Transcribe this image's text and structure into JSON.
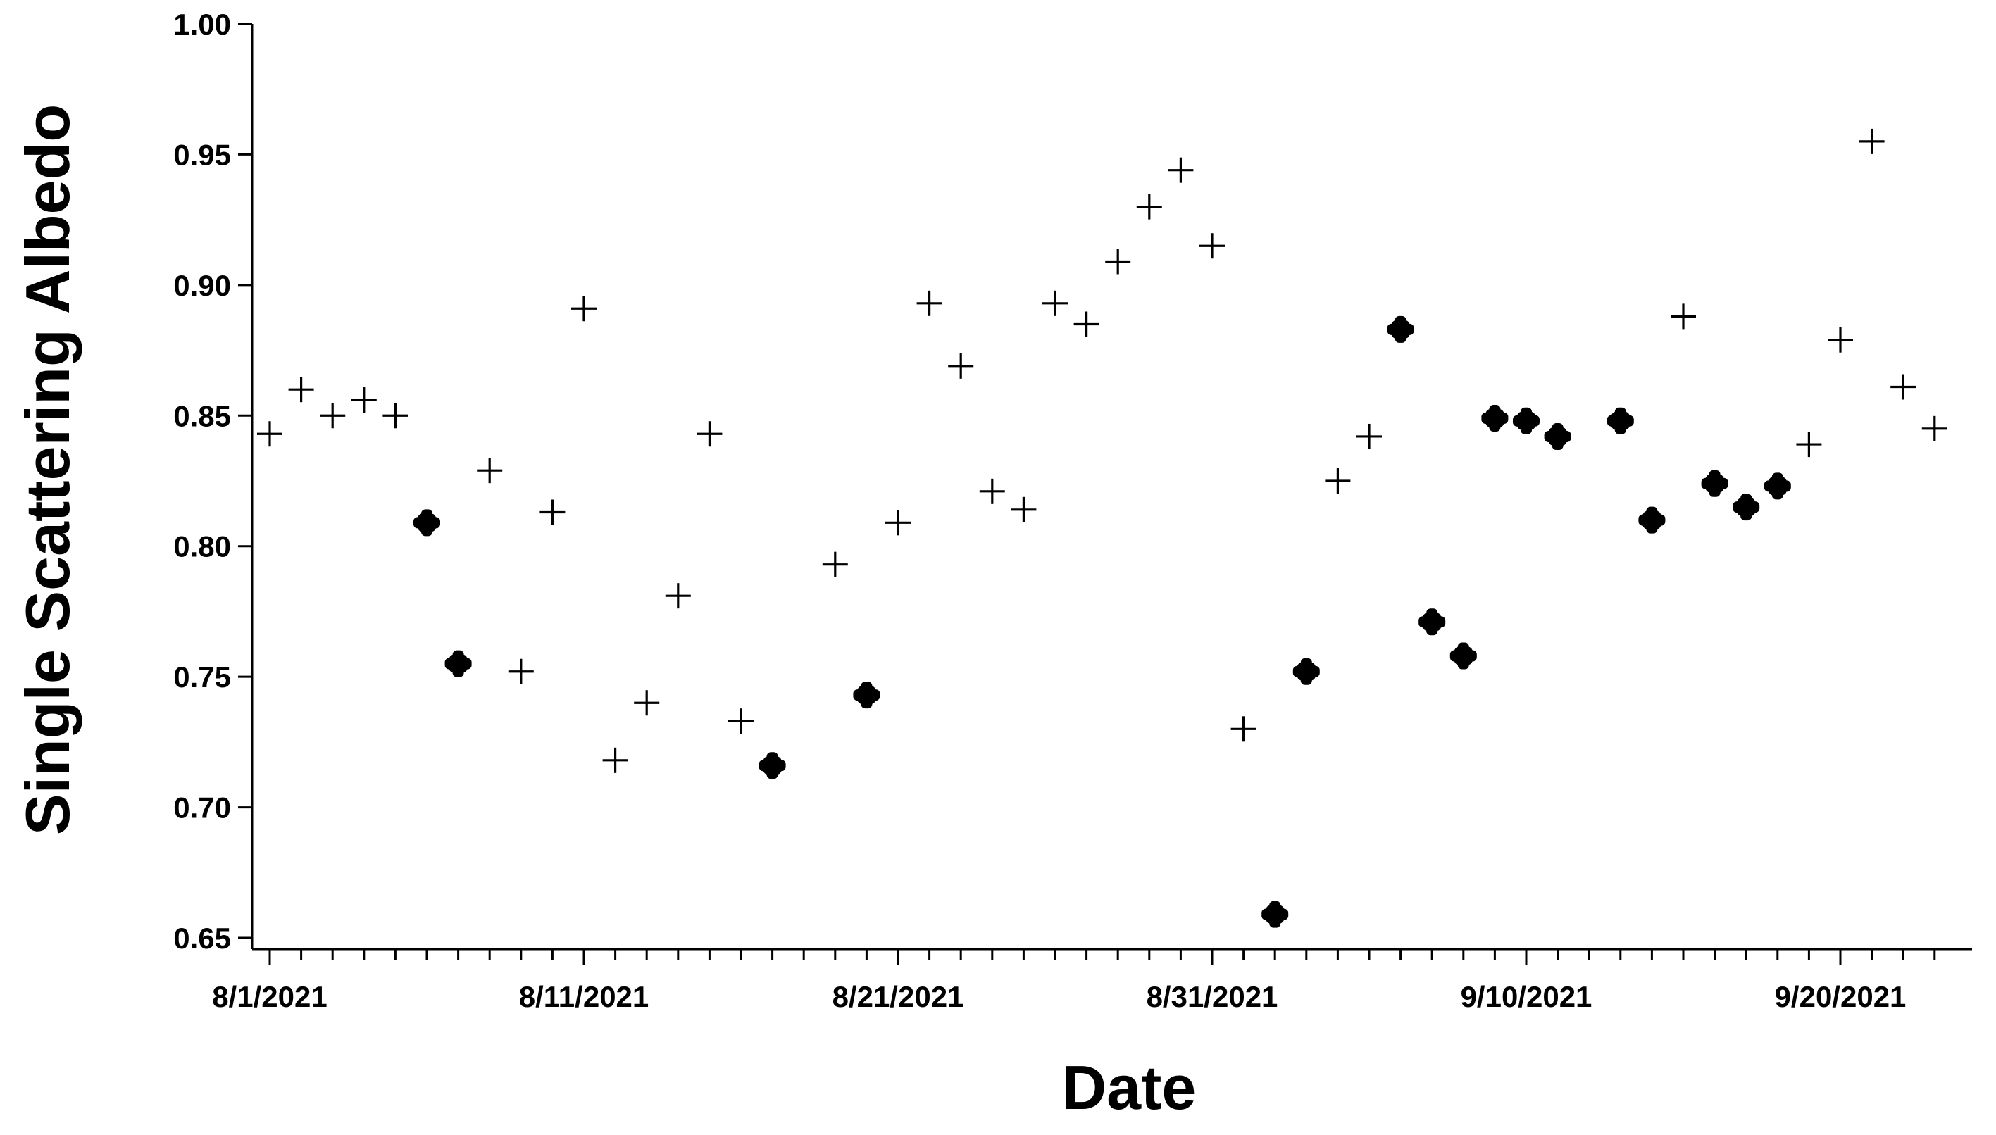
{
  "chart_data": {
    "type": "scatter",
    "title": "",
    "xlabel": "Date",
    "ylabel": "Single Scattering Albedo",
    "xlim": [
      "2021-07-31",
      "2021-09-24"
    ],
    "ylim": [
      0.645,
      1.0
    ],
    "y_ticks": [
      "0.65",
      "0.70",
      "0.75",
      "0.80",
      "0.85",
      "0.90",
      "0.95",
      "1.00"
    ],
    "x_tick_labels": [
      {
        "date": "2021-08-01",
        "label": "8/1/2021"
      },
      {
        "date": "2021-08-11",
        "label": "8/11/2021"
      },
      {
        "date": "2021-08-21",
        "label": "8/21/2021"
      },
      {
        "date": "2021-08-31",
        "label": "8/31/2021"
      },
      {
        "date": "2021-09-10",
        "label": "9/10/2021"
      },
      {
        "date": "2021-09-20",
        "label": "9/20/2021"
      }
    ],
    "grid": false,
    "series": [
      {
        "marker": "plus",
        "color": "#000000",
        "points": [
          {
            "x": "2021-08-01",
            "y": 0.843
          },
          {
            "x": "2021-08-02",
            "y": 0.86
          },
          {
            "x": "2021-08-03",
            "y": 0.85
          },
          {
            "x": "2021-08-04",
            "y": 0.856
          },
          {
            "x": "2021-08-05",
            "y": 0.85
          },
          {
            "x": "2021-08-08",
            "y": 0.829
          },
          {
            "x": "2021-08-09",
            "y": 0.752
          },
          {
            "x": "2021-08-10",
            "y": 0.813
          },
          {
            "x": "2021-08-11",
            "y": 0.891
          },
          {
            "x": "2021-08-12",
            "y": 0.718
          },
          {
            "x": "2021-08-13",
            "y": 0.74
          },
          {
            "x": "2021-08-14",
            "y": 0.781
          },
          {
            "x": "2021-08-15",
            "y": 0.843
          },
          {
            "x": "2021-08-16",
            "y": 0.733
          },
          {
            "x": "2021-08-19",
            "y": 0.793
          },
          {
            "x": "2021-08-21",
            "y": 0.809
          },
          {
            "x": "2021-08-22",
            "y": 0.893
          },
          {
            "x": "2021-08-23",
            "y": 0.869
          },
          {
            "x": "2021-08-24",
            "y": 0.821
          },
          {
            "x": "2021-08-25",
            "y": 0.814
          },
          {
            "x": "2021-08-26",
            "y": 0.893
          },
          {
            "x": "2021-08-27",
            "y": 0.885
          },
          {
            "x": "2021-08-28",
            "y": 0.909
          },
          {
            "x": "2021-08-29",
            "y": 0.93
          },
          {
            "x": "2021-08-30",
            "y": 0.944
          },
          {
            "x": "2021-08-31",
            "y": 0.915
          },
          {
            "x": "2021-09-01",
            "y": 0.73
          },
          {
            "x": "2021-09-04",
            "y": 0.825
          },
          {
            "x": "2021-09-05",
            "y": 0.842
          },
          {
            "x": "2021-09-15",
            "y": 0.888
          },
          {
            "x": "2021-09-19",
            "y": 0.839
          },
          {
            "x": "2021-09-20",
            "y": 0.879
          },
          {
            "x": "2021-09-21",
            "y": 0.955
          },
          {
            "x": "2021-09-22",
            "y": 0.861
          },
          {
            "x": "2021-09-23",
            "y": 0.845
          }
        ]
      },
      {
        "marker": "filled-plus",
        "color": "#000000",
        "points": [
          {
            "x": "2021-08-06",
            "y": 0.809
          },
          {
            "x": "2021-08-07",
            "y": 0.755
          },
          {
            "x": "2021-08-17",
            "y": 0.716
          },
          {
            "x": "2021-08-20",
            "y": 0.743
          },
          {
            "x": "2021-09-02",
            "y": 0.659
          },
          {
            "x": "2021-09-03",
            "y": 0.752
          },
          {
            "x": "2021-09-06",
            "y": 0.883
          },
          {
            "x": "2021-09-07",
            "y": 0.771
          },
          {
            "x": "2021-09-08",
            "y": 0.758
          },
          {
            "x": "2021-09-09",
            "y": 0.849
          },
          {
            "x": "2021-09-10",
            "y": 0.848
          },
          {
            "x": "2021-09-11",
            "y": 0.842
          },
          {
            "x": "2021-09-13",
            "y": 0.848
          },
          {
            "x": "2021-09-14",
            "y": 0.81
          },
          {
            "x": "2021-09-16",
            "y": 0.824
          },
          {
            "x": "2021-09-17",
            "y": 0.815
          },
          {
            "x": "2021-09-18",
            "y": 0.823
          }
        ]
      }
    ]
  }
}
